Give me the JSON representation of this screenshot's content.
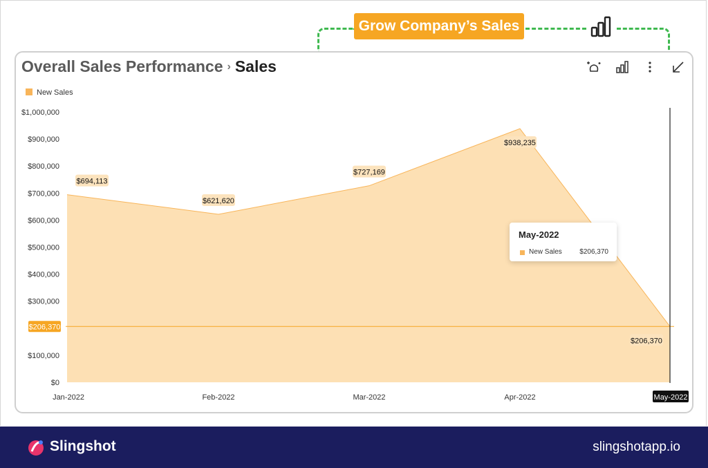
{
  "goal": {
    "label": "Grow Company’s Sales",
    "icon": "bar-chart-icon"
  },
  "widget": {
    "breadcrumb": "Overall Sales Performance",
    "separator": "›",
    "title": "Sales",
    "toolbar": [
      {
        "name": "sparkle-icon"
      },
      {
        "name": "bar-chart-icon"
      },
      {
        "name": "more-vert-icon"
      },
      {
        "name": "collapse-arrow-icon"
      }
    ]
  },
  "chart_data": {
    "type": "area",
    "categories": [
      "Jan-2022",
      "Feb-2022",
      "Mar-2022",
      "Apr-2022",
      "May-2022"
    ],
    "series": [
      {
        "name": "New Sales",
        "values": [
          694113,
          621620,
          727169,
          938235,
          206370
        ]
      }
    ],
    "data_labels": [
      "$694,113",
      "$621,620",
      "$727,169",
      "$938,235",
      "$206,370"
    ],
    "yticks": [
      0,
      100000,
      200000,
      300000,
      400000,
      500000,
      600000,
      700000,
      800000,
      900000,
      1000000
    ],
    "ytick_labels": [
      "$0",
      "$100,000",
      "",
      "$300,000",
      "$400,000",
      "$500,000",
      "$600,000",
      "$700,000",
      "$800,000",
      "$900,000",
      "$1,000,000"
    ],
    "ylim": [
      0,
      1000000
    ],
    "legend": "top-left",
    "crosshair": {
      "category": "May-2022",
      "value": 206370,
      "value_label": "$206,370"
    },
    "colors": {
      "fill": "#fde0b4",
      "line": "#f8b55a",
      "crosshair": "#f6a623",
      "axis_highlight": "#111111"
    }
  },
  "tooltip": {
    "title": "May-2022",
    "series": "New Sales",
    "value": "$206,370"
  },
  "footer": {
    "brand": "Slingshot",
    "site": "slingshotapp.io"
  }
}
